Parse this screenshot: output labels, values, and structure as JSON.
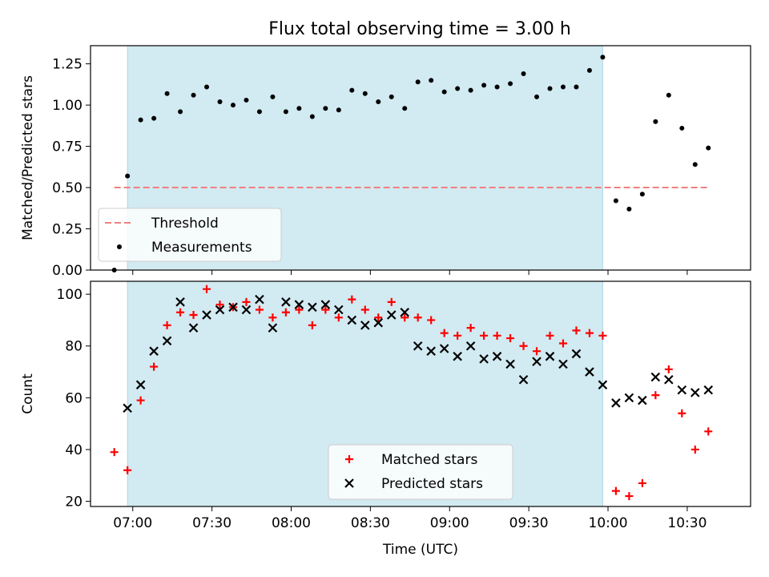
{
  "title": "Flux total observing time = 3.00 h",
  "chart_data": [
    {
      "type": "scatter",
      "ylabel": "Matched/Predicted stars",
      "xlabel": "",
      "xlim": [
        "06:44",
        "10:54"
      ],
      "ylim": [
        0,
        1.36
      ],
      "yticks": [
        0,
        0.25,
        0.5,
        0.75,
        1.0,
        1.25
      ],
      "ytick_labels": [
        "0.00",
        "0.25",
        "0.50",
        "0.75",
        "1.00",
        "1.25"
      ],
      "xticks": [
        "07:00",
        "07:30",
        "08:00",
        "08:30",
        "09:00",
        "09:30",
        "10:00",
        "10:30"
      ],
      "shaded_span": [
        "06:58",
        "09:58"
      ],
      "threshold": {
        "name": "Threshold",
        "y": 0.5,
        "x_from": "06:53",
        "x_to": "10:38",
        "color": "#f08080"
      },
      "legend_position": "lower-left",
      "series": [
        {
          "name": "Measurements",
          "marker": "dot",
          "color": "#000000",
          "x": [
            "06:53",
            "06:58",
            "07:03",
            "07:08",
            "07:13",
            "07:18",
            "07:23",
            "07:28",
            "07:33",
            "07:38",
            "07:43",
            "07:48",
            "07:53",
            "07:58",
            "08:03",
            "08:08",
            "08:13",
            "08:18",
            "08:23",
            "08:28",
            "08:33",
            "08:38",
            "08:43",
            "08:48",
            "08:53",
            "08:58",
            "09:03",
            "09:08",
            "09:13",
            "09:18",
            "09:23",
            "09:28",
            "09:33",
            "09:38",
            "09:43",
            "09:48",
            "09:53",
            "09:58",
            "10:03",
            "10:08",
            "10:13",
            "10:18",
            "10:23",
            "10:28",
            "10:33",
            "10:38"
          ],
          "y": [
            0.0,
            0.57,
            0.91,
            0.92,
            1.07,
            0.96,
            1.06,
            1.11,
            1.02,
            1.0,
            1.03,
            0.96,
            1.05,
            0.96,
            0.98,
            0.93,
            0.98,
            0.97,
            1.09,
            1.07,
            1.02,
            1.05,
            0.98,
            1.14,
            1.15,
            1.08,
            1.1,
            1.09,
            1.12,
            1.11,
            1.13,
            1.19,
            1.05,
            1.1,
            1.11,
            1.11,
            1.21,
            1.29,
            0.42,
            0.37,
            0.46,
            0.9,
            1.06,
            0.86,
            0.64,
            0.74
          ]
        }
      ]
    },
    {
      "type": "scatter",
      "ylabel": "Count",
      "xlabel": "Time (UTC)",
      "xlim": [
        "06:44",
        "10:54"
      ],
      "ylim": [
        18,
        105
      ],
      "yticks": [
        20,
        40,
        60,
        80,
        100
      ],
      "ytick_labels": [
        "20",
        "40",
        "60",
        "80",
        "100"
      ],
      "xticks": [
        "07:00",
        "07:30",
        "08:00",
        "08:30",
        "09:00",
        "09:30",
        "10:00",
        "10:30"
      ],
      "xtick_labels": [
        "07:00",
        "07:30",
        "08:00",
        "08:30",
        "09:00",
        "09:30",
        "10:00",
        "10:30"
      ],
      "shaded_span": [
        "06:58",
        "09:58"
      ],
      "legend_position": "lower-center",
      "series": [
        {
          "name": "Matched stars",
          "marker": "plus",
          "color": "#ff0000",
          "x": [
            "06:53",
            "06:58",
            "07:03",
            "07:08",
            "07:13",
            "07:18",
            "07:23",
            "07:28",
            "07:33",
            "07:38",
            "07:43",
            "07:48",
            "07:53",
            "07:58",
            "08:03",
            "08:08",
            "08:13",
            "08:18",
            "08:23",
            "08:28",
            "08:33",
            "08:38",
            "08:43",
            "08:48",
            "08:53",
            "08:58",
            "09:03",
            "09:08",
            "09:13",
            "09:18",
            "09:23",
            "09:28",
            "09:33",
            "09:38",
            "09:43",
            "09:48",
            "09:53",
            "09:58",
            "10:03",
            "10:08",
            "10:13",
            "10:18",
            "10:23",
            "10:28",
            "10:33",
            "10:38"
          ],
          "y": [
            39,
            32,
            59,
            72,
            88,
            93,
            92,
            102,
            96,
            95,
            97,
            94,
            91,
            93,
            94,
            88,
            94,
            91,
            98,
            94,
            91,
            97,
            91,
            91,
            90,
            85,
            84,
            87,
            84,
            84,
            83,
            80,
            78,
            84,
            81,
            86,
            85,
            84,
            24,
            22,
            27,
            61,
            71,
            54,
            40,
            47
          ]
        },
        {
          "name": "Predicted stars",
          "marker": "x",
          "color": "#000000",
          "x": [
            "06:58",
            "07:03",
            "07:08",
            "07:13",
            "07:18",
            "07:23",
            "07:28",
            "07:33",
            "07:38",
            "07:43",
            "07:48",
            "07:53",
            "07:58",
            "08:03",
            "08:08",
            "08:13",
            "08:18",
            "08:23",
            "08:28",
            "08:33",
            "08:38",
            "08:43",
            "08:48",
            "08:53",
            "08:58",
            "09:03",
            "09:08",
            "09:13",
            "09:18",
            "09:23",
            "09:28",
            "09:33",
            "09:38",
            "09:43",
            "09:48",
            "09:53",
            "09:58",
            "10:03",
            "10:08",
            "10:13",
            "10:18",
            "10:23",
            "10:28",
            "10:33",
            "10:38"
          ],
          "y": [
            56,
            65,
            78,
            82,
            97,
            87,
            92,
            94,
            95,
            94,
            98,
            87,
            97,
            96,
            95,
            96,
            94,
            90,
            88,
            89,
            92,
            93,
            80,
            78,
            79,
            76,
            80,
            75,
            76,
            73,
            67,
            74,
            76,
            73,
            77,
            70,
            65,
            58,
            60,
            59,
            68,
            67,
            63,
            62,
            63
          ]
        }
      ]
    }
  ],
  "colors": {
    "shade": "#add8e6",
    "threshold": "#f08080",
    "matched": "#ff0000",
    "predicted": "#000000"
  }
}
